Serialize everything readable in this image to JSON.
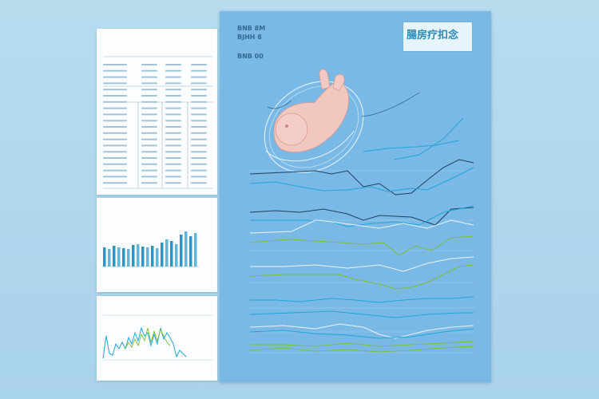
{
  "main": {
    "title": "腸房疗扣念",
    "subtitle": "",
    "header_lines": [
      "BNB 8M",
      "BJHH 8",
      "BNB 00"
    ],
    "callouts": [
      "",
      "",
      ""
    ],
    "row_labels": [
      "",
      "",
      "",
      "",
      "",
      ""
    ],
    "x_ticks": [
      "",
      "",
      "",
      "",
      "",
      ""
    ]
  },
  "left_top": {
    "title": "",
    "rows": []
  },
  "left_mid": {
    "title": "",
    "y_ticks": []
  },
  "left_bot": {
    "title": ""
  },
  "colors": {
    "background": "#b2d9ec",
    "main_panel": "#7ab9e6",
    "line_cyan": "#1ea8d6",
    "line_navy": "#1d3f62",
    "line_green": "#79c03a",
    "line_white": "#e8f4fb"
  },
  "icons": [
    "fetus-illustration"
  ]
}
